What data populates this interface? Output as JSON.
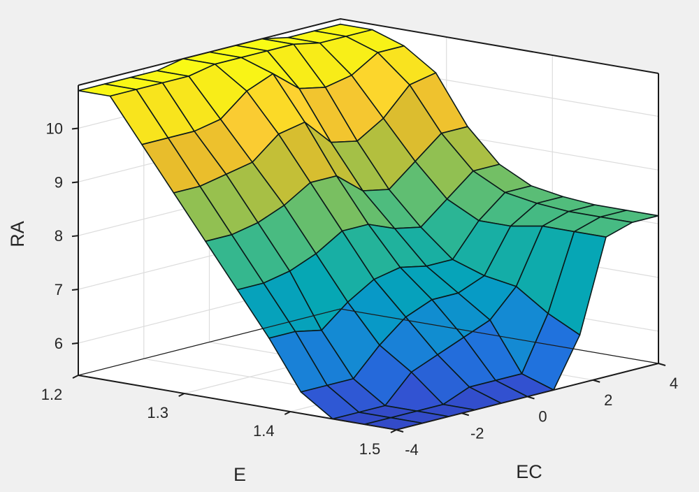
{
  "chart_data": {
    "type": "surface",
    "title": "",
    "xlabel": "E",
    "ylabel": "EC",
    "zlabel": "RA",
    "x_ticks": [
      1.2,
      1.3,
      1.4,
      1.5
    ],
    "y_ticks": [
      -4,
      -2,
      0,
      2,
      4
    ],
    "z_ticks": [
      6,
      7,
      8,
      9,
      10
    ],
    "xlim": [
      1.2,
      1.5
    ],
    "ylim": [
      -4,
      4
    ],
    "zlim": [
      5.4,
      10.8
    ],
    "grid": true,
    "colormap": "parula",
    "x": [
      1.2,
      1.23,
      1.26,
      1.29,
      1.32,
      1.35,
      1.38,
      1.41,
      1.44,
      1.47,
      1.5
    ],
    "y": [
      -4,
      -3.2,
      -2.4,
      -1.6,
      -0.8,
      0,
      0.8,
      1.6,
      2.4,
      3.2,
      4
    ],
    "z": [
      [
        10.7,
        10.7,
        10.7,
        10.7,
        10.8,
        10.8,
        10.8,
        10.8,
        10.7,
        10.7,
        10.7
      ],
      [
        10.7,
        10.7,
        10.7,
        10.7,
        10.8,
        10.8,
        10.8,
        10.8,
        10.7,
        10.7,
        10.7
      ],
      [
        9.9,
        9.9,
        9.9,
        10.0,
        10.4,
        10.6,
        10.2,
        10.1,
        10.2,
        10.5,
        10.5
      ],
      [
        9.1,
        9.1,
        9.2,
        9.3,
        9.7,
        9.8,
        9.3,
        9.2,
        9.5,
        10.0,
        10.1
      ],
      [
        8.3,
        8.3,
        8.4,
        8.6,
        8.9,
        8.9,
        8.5,
        8.4,
        8.8,
        9.2,
        9.2
      ],
      [
        7.5,
        7.5,
        7.6,
        7.8,
        8.1,
        8.1,
        7.9,
        7.8,
        8.2,
        8.6,
        8.6
      ],
      [
        6.7,
        6.7,
        6.6,
        7.0,
        7.3,
        7.4,
        7.3,
        7.3,
        7.9,
        8.3,
        8.3
      ],
      [
        5.8,
        5.8,
        5.8,
        6.3,
        6.7,
        6.9,
        6.9,
        7.1,
        7.9,
        8.2,
        8.2
      ],
      [
        5.4,
        5.4,
        5.4,
        5.9,
        6.1,
        6.3,
        6.5,
        7.0,
        8.0,
        8.15,
        8.15
      ],
      [
        5.4,
        5.4,
        5.4,
        5.4,
        5.6,
        5.6,
        5.6,
        6.6,
        8.0,
        8.15,
        8.15
      ],
      [
        5.4,
        5.4,
        5.4,
        5.4,
        5.4,
        5.4,
        5.4,
        6.3,
        8.0,
        8.15,
        8.15
      ]
    ]
  },
  "axes": {
    "z_label": "RA",
    "x_label": "E",
    "y_label": "EC",
    "z_ticks": [
      "6",
      "7",
      "8",
      "9",
      "10"
    ],
    "x_ticks": [
      "1.2",
      "1.3",
      "1.4",
      "1.5"
    ],
    "y_ticks": [
      "-4",
      "-2",
      "0",
      "2",
      "4"
    ]
  }
}
